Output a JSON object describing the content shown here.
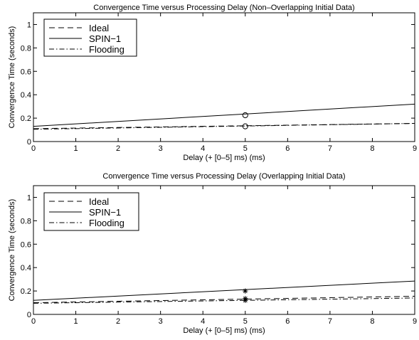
{
  "chart_data": [
    {
      "type": "line",
      "title": "Convergence Time versus Processing Delay (Non–Overlapping Initial Data)",
      "xlabel": "Delay (+ [0–5] ms) (ms)",
      "ylabel": "Convergence Time (seconds)",
      "xlim": [
        0,
        9
      ],
      "ylim": [
        0,
        1.1
      ],
      "xticks": [
        "0",
        "1",
        "2",
        "3",
        "4",
        "5",
        "6",
        "7",
        "8",
        "9"
      ],
      "yticks": [
        "0",
        "0.2",
        "0.4",
        "0.6",
        "0.8",
        "1"
      ],
      "xtick_values": [
        0,
        1,
        2,
        3,
        4,
        5,
        6,
        7,
        8,
        9
      ],
      "ytick_values": [
        0,
        0.2,
        0.4,
        0.6,
        0.8,
        1
      ],
      "grid": false,
      "legend_position": "top-left",
      "series": [
        {
          "name": "Ideal",
          "dash": "dashed",
          "x": [
            0,
            9
          ],
          "y": [
            0.11,
            0.155
          ]
        },
        {
          "name": "SPIN−1",
          "dash": "solid",
          "x": [
            0,
            9
          ],
          "y": [
            0.13,
            0.32
          ]
        },
        {
          "name": "Flooding",
          "dash": "dashdot",
          "x": [
            0,
            9
          ],
          "y": [
            0.105,
            0.155
          ]
        }
      ],
      "markers": [
        {
          "x": 5,
          "y": 0.225,
          "symbol": "circle"
        },
        {
          "x": 5,
          "y": 0.13,
          "symbol": "circle"
        }
      ]
    },
    {
      "type": "line",
      "title": "Convergence Time versus Processing Delay (Overlapping Initial Data)",
      "xlabel": "Delay (+ [0–5] ms) (ms)",
      "ylabel": "Convergence Time (seconds)",
      "xlim": [
        0,
        9
      ],
      "ylim": [
        0,
        1.1
      ],
      "xticks": [
        "0",
        "1",
        "2",
        "3",
        "4",
        "5",
        "6",
        "7",
        "8",
        "9"
      ],
      "yticks": [
        "0",
        "0.2",
        "0.4",
        "0.6",
        "0.8",
        "1"
      ],
      "xtick_values": [
        0,
        1,
        2,
        3,
        4,
        5,
        6,
        7,
        8,
        9
      ],
      "ytick_values": [
        0,
        0.2,
        0.4,
        0.6,
        0.8,
        1
      ],
      "grid": false,
      "legend_position": "top-left",
      "series": [
        {
          "name": "Ideal",
          "dash": "dashed",
          "x": [
            0,
            9
          ],
          "y": [
            0.1,
            0.155
          ]
        },
        {
          "name": "SPIN−1",
          "dash": "solid",
          "x": [
            0,
            9
          ],
          "y": [
            0.12,
            0.285
          ]
        },
        {
          "name": "Flooding",
          "dash": "dashdot",
          "x": [
            0,
            9
          ],
          "y": [
            0.095,
            0.14
          ]
        }
      ],
      "markers": [
        {
          "x": 5,
          "y": 0.2,
          "symbol": "star"
        },
        {
          "x": 5,
          "y": 0.135,
          "symbol": "star"
        },
        {
          "x": 5,
          "y": 0.12,
          "symbol": "star"
        }
      ]
    }
  ]
}
